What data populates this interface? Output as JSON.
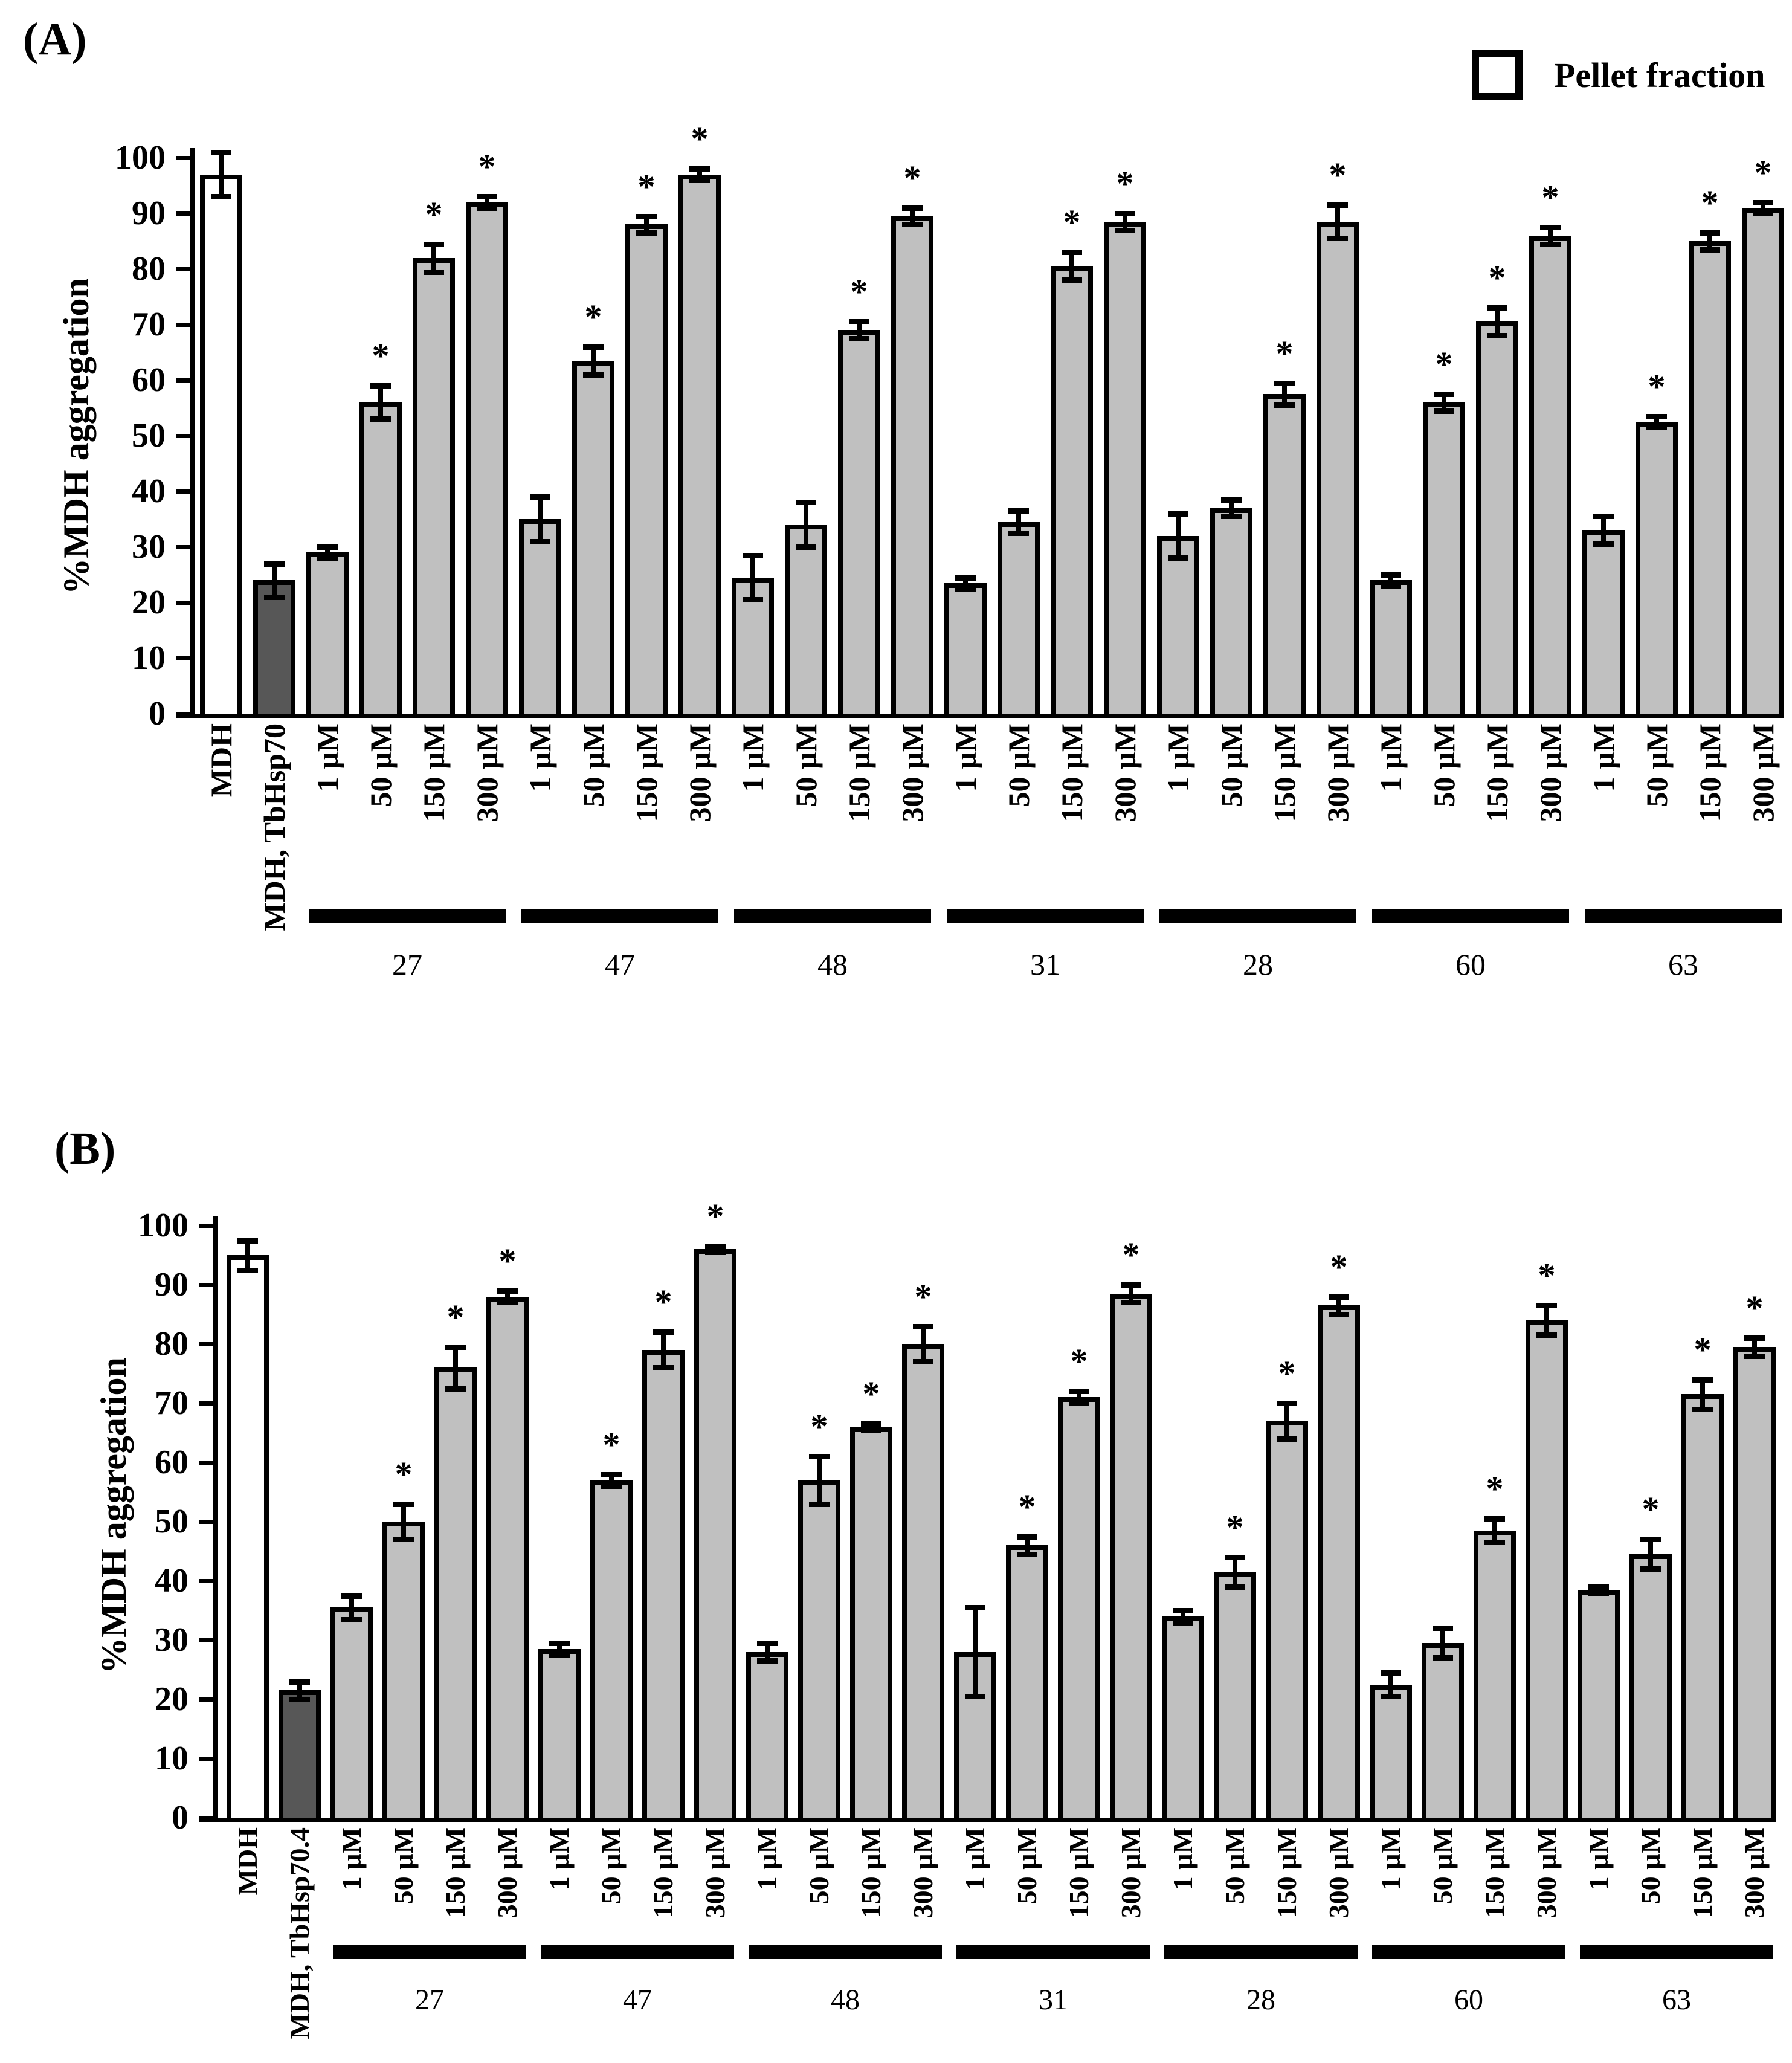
{
  "figure_title": "",
  "legend": {
    "label": "Pellet fraction",
    "swatch_color": "#c0c0c0",
    "border_color": "#000000"
  },
  "colors": {
    "bar_light": "#c0c0c0",
    "bar_dark": "#575757",
    "bar_white": "#ffffff",
    "stroke": "#000000"
  },
  "sig_marker": "*",
  "chart_data": [
    {
      "type": "bar",
      "panel": "(A)",
      "ylabel": "%MDH aggregation",
      "ylim": [
        0,
        100
      ],
      "ytick_step": 10,
      "yticks": [
        0,
        10,
        20,
        30,
        40,
        50,
        60,
        70,
        80,
        90,
        100
      ],
      "grid": false,
      "legend_entry": "Pellet fraction",
      "legend_position": "top-right",
      "bars": [
        {
          "label": "MDH",
          "value": 97,
          "err": 4,
          "fill": "white",
          "sig": false
        },
        {
          "label": "MDH, TbHsp70",
          "value": 24,
          "err": 3,
          "fill": "dark",
          "sig": false
        },
        {
          "label": "1 µM",
          "value": 29,
          "err": 1,
          "fill": "light",
          "sig": false
        },
        {
          "label": "50 µM",
          "value": 56,
          "err": 3,
          "fill": "light",
          "sig": true
        },
        {
          "label": "150 µM",
          "value": 82,
          "err": 2.5,
          "fill": "light",
          "sig": true
        },
        {
          "label": "300 µM",
          "value": 92,
          "err": 1,
          "fill": "light",
          "sig": true
        },
        {
          "label": "1 µM",
          "value": 35,
          "err": 4,
          "fill": "light",
          "sig": false
        },
        {
          "label": "50 µM",
          "value": 63.5,
          "err": 2.5,
          "fill": "light",
          "sig": true
        },
        {
          "label": "150 µM",
          "value": 88,
          "err": 1.5,
          "fill": "light",
          "sig": true
        },
        {
          "label": "300 µM",
          "value": 97,
          "err": 1,
          "fill": "light",
          "sig": true
        },
        {
          "label": "1 µM",
          "value": 24.5,
          "err": 4,
          "fill": "light",
          "sig": false
        },
        {
          "label": "50 µM",
          "value": 34,
          "err": 4,
          "fill": "light",
          "sig": false
        },
        {
          "label": "150 µM",
          "value": 69,
          "err": 1.5,
          "fill": "light",
          "sig": true
        },
        {
          "label": "300 µM",
          "value": 89.5,
          "err": 1.5,
          "fill": "light",
          "sig": true
        },
        {
          "label": "1 µM",
          "value": 23.5,
          "err": 1,
          "fill": "light",
          "sig": false
        },
        {
          "label": "50 µM",
          "value": 34.5,
          "err": 2,
          "fill": "light",
          "sig": false
        },
        {
          "label": "150 µM",
          "value": 80.5,
          "err": 2.5,
          "fill": "light",
          "sig": true
        },
        {
          "label": "300 µM",
          "value": 88.5,
          "err": 1.5,
          "fill": "light",
          "sig": true
        },
        {
          "label": "1 µM",
          "value": 32,
          "err": 4,
          "fill": "light",
          "sig": false
        },
        {
          "label": "50 µM",
          "value": 37,
          "err": 1.5,
          "fill": "light",
          "sig": false
        },
        {
          "label": "150 µM",
          "value": 57.5,
          "err": 2,
          "fill": "light",
          "sig": true
        },
        {
          "label": "300 µM",
          "value": 88.5,
          "err": 3,
          "fill": "light",
          "sig": true
        },
        {
          "label": "1 µM",
          "value": 24,
          "err": 1,
          "fill": "light",
          "sig": false
        },
        {
          "label": "50 µM",
          "value": 56,
          "err": 1.5,
          "fill": "light",
          "sig": true
        },
        {
          "label": "150 µM",
          "value": 70.5,
          "err": 2.5,
          "fill": "light",
          "sig": true
        },
        {
          "label": "300 µM",
          "value": 86,
          "err": 1.5,
          "fill": "light",
          "sig": true
        },
        {
          "label": "1 µM",
          "value": 33,
          "err": 2.5,
          "fill": "light",
          "sig": false
        },
        {
          "label": "50 µM",
          "value": 52.5,
          "err": 1,
          "fill": "light",
          "sig": true
        },
        {
          "label": "150 µM",
          "value": 85,
          "err": 1.5,
          "fill": "light",
          "sig": true
        },
        {
          "label": "300 µM",
          "value": 91,
          "err": 1,
          "fill": "light",
          "sig": true
        }
      ],
      "groups": [
        {
          "label": "27",
          "from": 2,
          "to": 5
        },
        {
          "label": "47",
          "from": 6,
          "to": 9
        },
        {
          "label": "48",
          "from": 10,
          "to": 13
        },
        {
          "label": "31",
          "from": 14,
          "to": 17
        },
        {
          "label": "28",
          "from": 18,
          "to": 21
        },
        {
          "label": "60",
          "from": 22,
          "to": 25
        },
        {
          "label": "63",
          "from": 26,
          "to": 29
        }
      ]
    },
    {
      "type": "bar",
      "panel": "(B)",
      "ylabel": "%MDH aggregation",
      "ylim": [
        0,
        100
      ],
      "ytick_step": 10,
      "yticks": [
        0,
        10,
        20,
        30,
        40,
        50,
        60,
        70,
        80,
        90,
        100
      ],
      "grid": false,
      "bars": [
        {
          "label": "MDH",
          "value": 95,
          "err": 2.5,
          "fill": "white",
          "sig": false
        },
        {
          "label": "MDH, TbHsp70.4",
          "value": 21.5,
          "err": 1.5,
          "fill": "dark",
          "sig": false
        },
        {
          "label": "1 µM",
          "value": 35.5,
          "err": 2,
          "fill": "light",
          "sig": false
        },
        {
          "label": "50 µM",
          "value": 50,
          "err": 3,
          "fill": "light",
          "sig": true
        },
        {
          "label": "150 µM",
          "value": 76,
          "err": 3.5,
          "fill": "light",
          "sig": true
        },
        {
          "label": "300 µM",
          "value": 88,
          "err": 1,
          "fill": "light",
          "sig": true
        },
        {
          "label": "1 µM",
          "value": 28.5,
          "err": 1,
          "fill": "light",
          "sig": false
        },
        {
          "label": "50 µM",
          "value": 57,
          "err": 1,
          "fill": "light",
          "sig": true
        },
        {
          "label": "150 µM",
          "value": 79,
          "err": 3,
          "fill": "light",
          "sig": true
        },
        {
          "label": "300 µM",
          "value": 96,
          "err": 0.5,
          "fill": "light",
          "sig": true
        },
        {
          "label": "1 µM",
          "value": 28,
          "err": 1.5,
          "fill": "light",
          "sig": false
        },
        {
          "label": "50 µM",
          "value": 57,
          "err": 4,
          "fill": "light",
          "sig": true
        },
        {
          "label": "150 µM",
          "value": 66,
          "err": 0.5,
          "fill": "light",
          "sig": true
        },
        {
          "label": "300 µM",
          "value": 80,
          "err": 3,
          "fill": "light",
          "sig": true
        },
        {
          "label": "1 µM",
          "value": 28,
          "err": 7.5,
          "fill": "light",
          "sig": false
        },
        {
          "label": "50 µM",
          "value": 46,
          "err": 1.5,
          "fill": "light",
          "sig": true
        },
        {
          "label": "150 µM",
          "value": 71,
          "err": 1,
          "fill": "light",
          "sig": true
        },
        {
          "label": "300 µM",
          "value": 88.5,
          "err": 1.5,
          "fill": "light",
          "sig": true
        },
        {
          "label": "1 µM",
          "value": 34,
          "err": 1,
          "fill": "light",
          "sig": false
        },
        {
          "label": "50 µM",
          "value": 41.5,
          "err": 2.5,
          "fill": "light",
          "sig": true
        },
        {
          "label": "150 µM",
          "value": 67,
          "err": 3,
          "fill": "light",
          "sig": true
        },
        {
          "label": "300 µM",
          "value": 86.5,
          "err": 1.5,
          "fill": "light",
          "sig": true
        },
        {
          "label": "1 µM",
          "value": 22.5,
          "err": 2,
          "fill": "light",
          "sig": false
        },
        {
          "label": "50 µM",
          "value": 29.5,
          "err": 2.5,
          "fill": "light",
          "sig": false
        },
        {
          "label": "150 µM",
          "value": 48.5,
          "err": 2,
          "fill": "light",
          "sig": true
        },
        {
          "label": "300 µM",
          "value": 84,
          "err": 2.5,
          "fill": "light",
          "sig": true
        },
        {
          "label": "1 µM",
          "value": 38.5,
          "err": 0.5,
          "fill": "light",
          "sig": false
        },
        {
          "label": "50 µM",
          "value": 44.5,
          "err": 2.5,
          "fill": "light",
          "sig": true
        },
        {
          "label": "150 µM",
          "value": 71.5,
          "err": 2.5,
          "fill": "light",
          "sig": true
        },
        {
          "label": "300 µM",
          "value": 79.5,
          "err": 1.5,
          "fill": "light",
          "sig": true
        }
      ],
      "groups": [
        {
          "label": "27",
          "from": 2,
          "to": 5
        },
        {
          "label": "47",
          "from": 6,
          "to": 9
        },
        {
          "label": "48",
          "from": 10,
          "to": 13
        },
        {
          "label": "31",
          "from": 14,
          "to": 17
        },
        {
          "label": "28",
          "from": 18,
          "to": 21
        },
        {
          "label": "60",
          "from": 22,
          "to": 25
        },
        {
          "label": "63",
          "from": 26,
          "to": 29
        }
      ]
    }
  ]
}
